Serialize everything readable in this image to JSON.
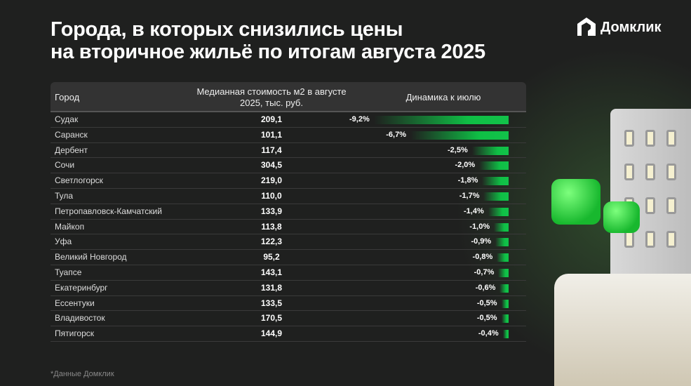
{
  "title": [
    "Города, в которых снизились цены",
    "на вторичное жильё по итогам августа 2025"
  ],
  "logo": "Домклик",
  "headers": {
    "city": "Город",
    "price": "Медианная стоимость м2 в августе 2025, тыс. руб.",
    "change": "Динамика к июлю"
  },
  "rows": [
    {
      "city": "Судак",
      "price": "209,1",
      "change": "-9,2%",
      "value": -9.2
    },
    {
      "city": "Саранск",
      "price": "101,1",
      "change": "-6,7%",
      "value": -6.7
    },
    {
      "city": "Дербент",
      "price": "117,4",
      "change": "-2,5%",
      "value": -2.5
    },
    {
      "city": "Сочи",
      "price": "304,5",
      "change": "-2,0%",
      "value": -2.0
    },
    {
      "city": "Светлогорск",
      "price": "219,0",
      "change": "-1,8%",
      "value": -1.8
    },
    {
      "city": "Тула",
      "price": "110,0",
      "change": "-1,7%",
      "value": -1.7
    },
    {
      "city": "Петропавловск-Камчатский",
      "price": "133,9",
      "change": "-1,4%",
      "value": -1.4
    },
    {
      "city": "Майкоп",
      "price": "113,8",
      "change": "-1,0%",
      "value": -1.0
    },
    {
      "city": "Уфа",
      "price": "122,3",
      "change": "-0,9%",
      "value": -0.9
    },
    {
      "city": "Великий Новгород",
      "price": "95,2",
      "change": "-0,8%",
      "value": -0.8
    },
    {
      "city": "Туапсе",
      "price": "143,1",
      "change": "-0,7%",
      "value": -0.7
    },
    {
      "city": "Екатеринбург",
      "price": "131,8",
      "change": "-0,6%",
      "value": -0.6
    },
    {
      "city": "Ессентуки",
      "price": "133,5",
      "change": "-0,5%",
      "value": -0.5
    },
    {
      "city": "Владивосток",
      "price": "170,5",
      "change": "-0,5%",
      "value": -0.5
    },
    {
      "city": "Пятигорск",
      "price": "144,9",
      "change": "-0,4%",
      "value": -0.4
    }
  ],
  "note": "*Данные Домклик",
  "colors": {
    "accent": "#12c24a",
    "background": "#1f1f1f"
  }
}
